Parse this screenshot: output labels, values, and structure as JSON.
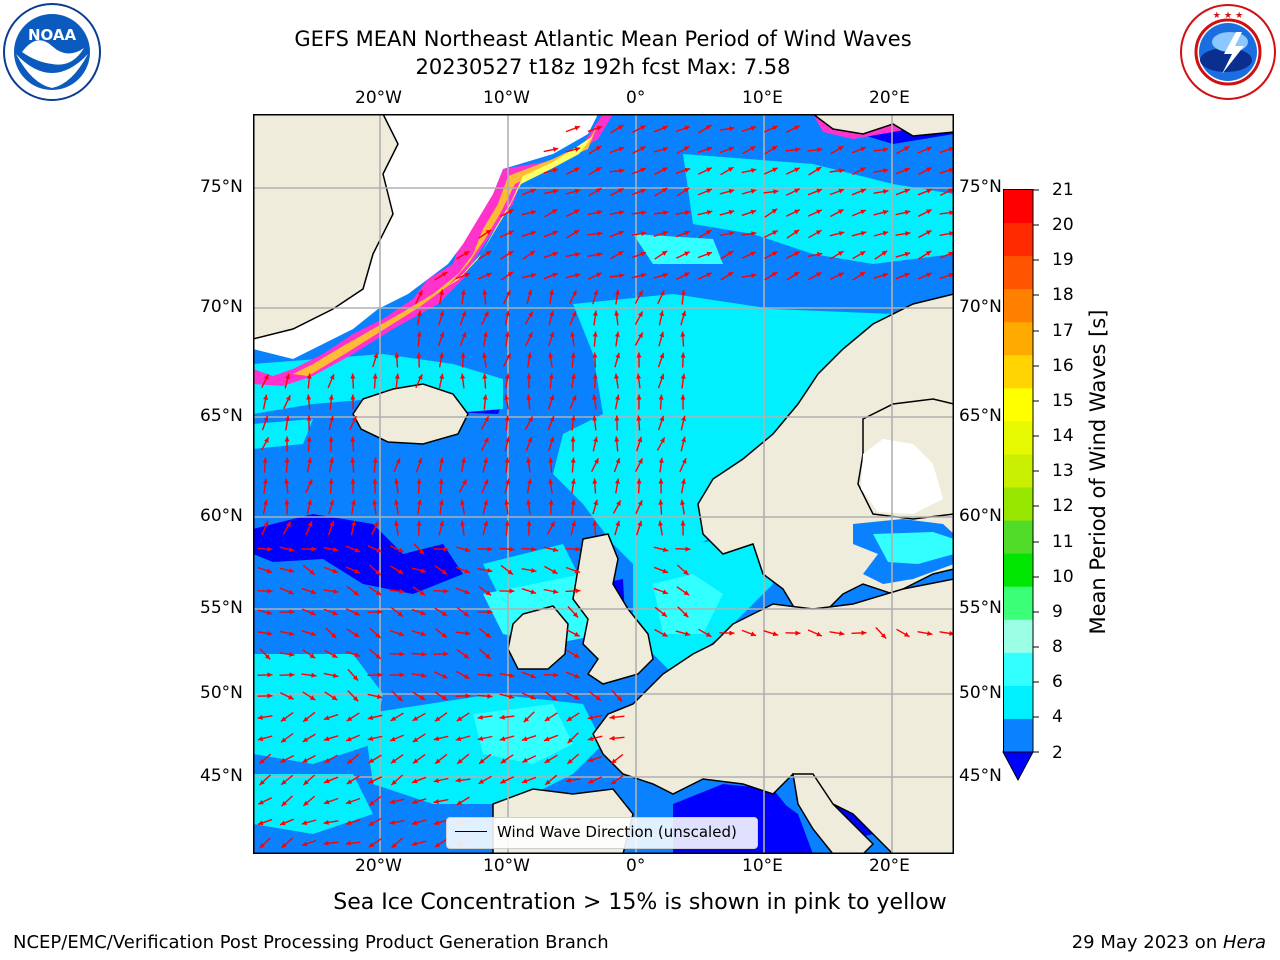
{
  "header": {
    "title_line1": "GEFS MEAN Northeast Atlantic Mean Period of Wind Waves",
    "title_line2": "20230527 t18z 192h fcst   Max: 7.58"
  },
  "logos": {
    "left": "NOAA",
    "left_ring": "NATIONAL OCEANIC AND ATMOSPHERIC ADMINISTRATION · U.S. DEPARTMENT OF COMMERCE",
    "right_ring": "NATIONAL WEATHER SERVICE"
  },
  "map": {
    "lon_ticks_top": [
      "20°W",
      "10°W",
      "0°",
      "10°E",
      "20°E"
    ],
    "lon_ticks_bottom": [
      "20°W",
      "10°W",
      "0°",
      "10°E",
      "20°E"
    ],
    "lat_ticks_left": [
      "75°N",
      "70°N",
      "65°N",
      "60°N",
      "55°N",
      "50°N",
      "45°N"
    ],
    "lat_ticks_right": [
      "75°N",
      "70°N",
      "65°N",
      "60°N",
      "55°N",
      "50°N",
      "45°N"
    ],
    "legend_label": "Wind Wave Direction (unscaled)",
    "colors": {
      "land": "#efecdc",
      "ice": "#ffffff",
      "arrow": "#ff0000",
      "grid": "#b0b0b0"
    }
  },
  "colorbar": {
    "label": "Mean Period of Wind Waves [s]",
    "ticks": [
      "21",
      "20",
      "19",
      "18",
      "17",
      "16",
      "15",
      "14",
      "13",
      "12",
      "11",
      "10",
      "9",
      "8",
      "6",
      "4",
      "2"
    ],
    "colors": [
      "#ff0000",
      "#ff2a00",
      "#ff5500",
      "#ff8000",
      "#ffaa00",
      "#ffd400",
      "#ffff00",
      "#e6f900",
      "#c8f000",
      "#96e600",
      "#50dc28",
      "#00e600",
      "#3cff78",
      "#9bffe6",
      "#32ffff",
      "#00f0ff",
      "#0a82ff",
      "#0000ff"
    ],
    "under_color": "#0000ff"
  },
  "bottom_note": "Sea Ice Concentration > 15% is shown in pink to yellow",
  "footer": {
    "left": "NCEP/EMC/Verification Post Processing Product Generation Branch",
    "right_prefix": "29 May 2023 on ",
    "right_host": "Hera"
  }
}
